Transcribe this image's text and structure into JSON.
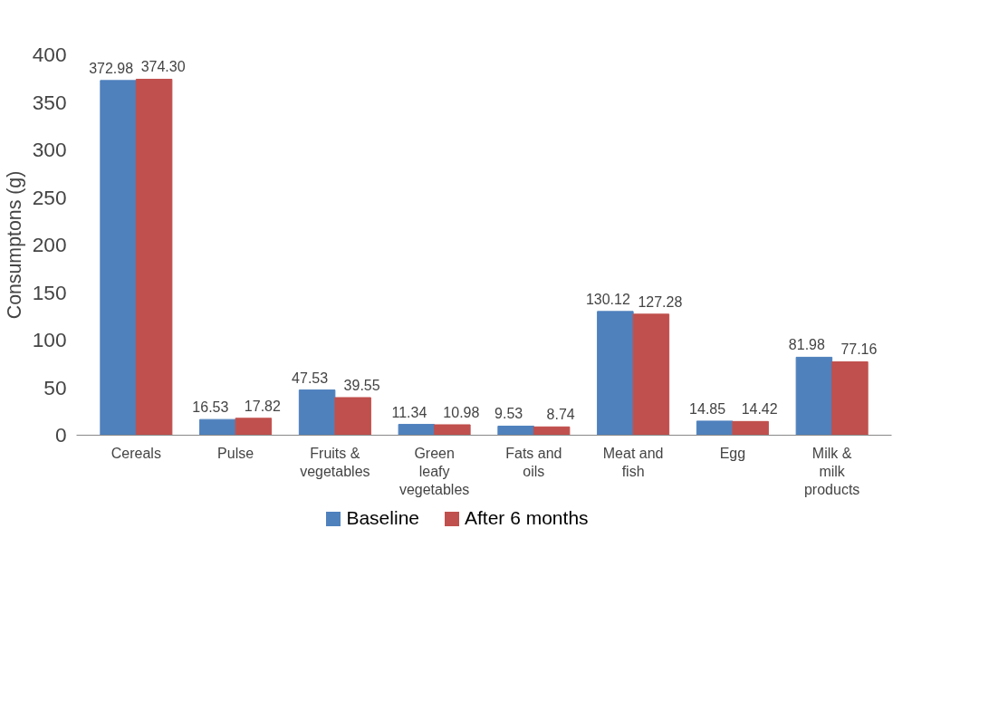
{
  "chart_data": {
    "type": "bar",
    "ylabel": "Consumptons (g)",
    "categories": [
      "Cereals",
      "Pulse",
      "Fruits & vegetables",
      "Green leafy vegetables",
      "Fats and oils",
      "Meat and fish",
      "Egg",
      "Milk & milk products"
    ],
    "series": [
      {
        "name": "Baseline",
        "color": "#4f81bd",
        "values": [
          372.98,
          16.53,
          47.53,
          11.34,
          9.53,
          130.12,
          14.85,
          81.98
        ],
        "value_labels": [
          "372.98",
          "16.53",
          "47.53",
          "11.34",
          "9.53",
          "130.12",
          "14.85",
          "81.98"
        ]
      },
      {
        "name": "After 6 months",
        "color": "#c0504d",
        "values": [
          374.3,
          17.82,
          39.55,
          10.98,
          8.74,
          127.28,
          14.42,
          77.16
        ],
        "value_labels": [
          "374.30",
          "17.82",
          "39.55",
          "10.98",
          "8.74",
          "127.28",
          "14.42",
          "77.16"
        ]
      }
    ],
    "ylim": [
      0,
      400
    ],
    "yticks": [
      0,
      50,
      100,
      150,
      200,
      250,
      300,
      350,
      400
    ],
    "grid": false,
    "legend": "bottom"
  }
}
